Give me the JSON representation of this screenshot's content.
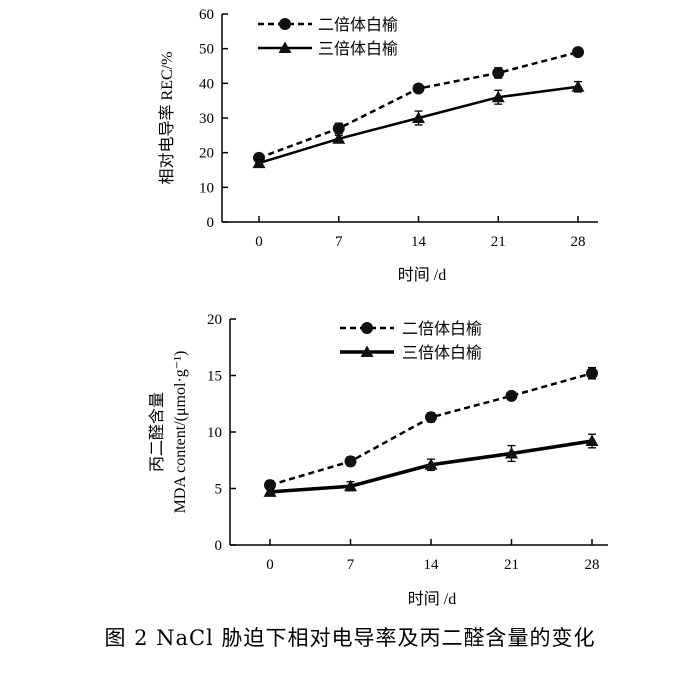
{
  "caption": "图 2   NaCl 胁迫下相对电导率及丙二醛含量的变化",
  "chart_data": [
    {
      "type": "line",
      "title": "",
      "xlabel": "时间 /d",
      "ylabel": "相对电导率 REC/%",
      "x": [
        0,
        7,
        14,
        21,
        28
      ],
      "ylim": [
        0,
        60
      ],
      "yticks": [
        0,
        10,
        20,
        30,
        40,
        50,
        60
      ],
      "grid": false,
      "legend_position": "top-left",
      "series": [
        {
          "name": "二倍体白榆",
          "style": "dashed",
          "marker": "circle",
          "values": [
            18.5,
            27.0,
            38.5,
            43.0,
            49.0
          ],
          "errors": [
            1.0,
            1.5,
            1.0,
            1.5,
            1.0
          ]
        },
        {
          "name": "三倍体白榆",
          "style": "solid",
          "marker": "triangle",
          "values": [
            17.0,
            24.0,
            30.0,
            36.0,
            39.0
          ],
          "errors": [
            1.0,
            1.0,
            2.0,
            2.0,
            1.5
          ]
        }
      ]
    },
    {
      "type": "line",
      "title": "",
      "xlabel": "时间 /d",
      "ylabel": "丙二醛含量",
      "ylabel2": "MDA content/(μmol·g⁻¹)",
      "x": [
        0,
        7,
        14,
        21,
        28
      ],
      "ylim": [
        0,
        20
      ],
      "yticks": [
        0,
        5,
        10,
        15,
        20
      ],
      "grid": false,
      "legend_position": "top-center",
      "series": [
        {
          "name": "二倍体白榆",
          "style": "dashed",
          "marker": "circle",
          "values": [
            5.3,
            7.4,
            11.3,
            13.2,
            15.2
          ],
          "errors": [
            0.4,
            0.4,
            0.4,
            0.3,
            0.5
          ]
        },
        {
          "name": "三倍体白榆",
          "style": "solid",
          "marker": "triangle",
          "values": [
            4.7,
            5.2,
            7.1,
            8.1,
            9.2
          ],
          "errors": [
            0.3,
            0.4,
            0.5,
            0.7,
            0.6
          ]
        }
      ]
    }
  ]
}
